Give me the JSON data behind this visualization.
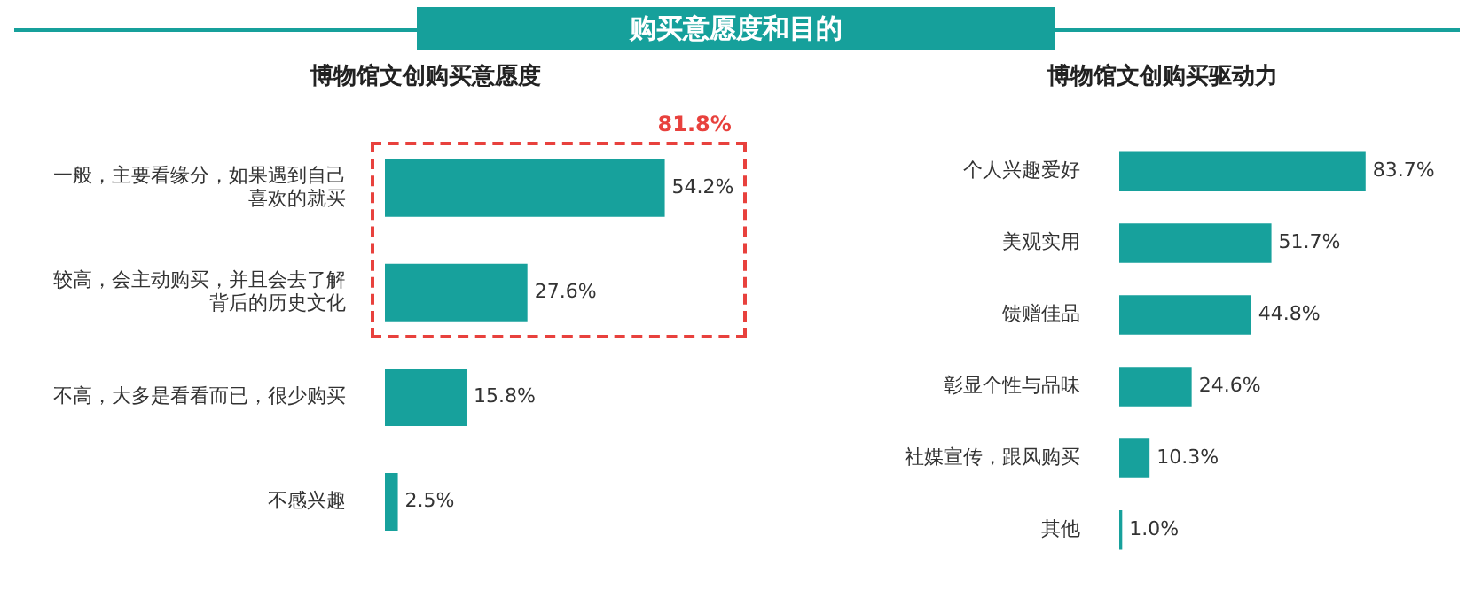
{
  "chart_data": [
    {
      "type": "bar",
      "orientation": "horizontal",
      "title": "购买意愿度和目的",
      "subtitle": "博物馆文创购买意愿度",
      "categories": [
        "一般，主要看缘分，如果遇到自己喜欢的就买",
        "较高，会主动购买，并且会去了解背后的历史文化",
        "不高，大多是看看而已，很少购买",
        "不感兴趣"
      ],
      "values": [
        54.2,
        27.6,
        15.8,
        2.5
      ],
      "value_labels": [
        "54.2%",
        "27.6%",
        "15.8%",
        "2.5%"
      ],
      "color": "#17a19c",
      "tick_labels": "y",
      "annotations": [
        "81.8%"
      ]
    },
    {
      "type": "bar",
      "orientation": "horizontal",
      "title": "博物馆文创购买驱动力",
      "categories": [
        "个人兴趣爱好",
        "美观实用",
        "馈赠佳品",
        "彰显个性与品味",
        "社媒宣传，跟风购买",
        "其他"
      ],
      "values": [
        83.7,
        51.7,
        44.8,
        24.6,
        10.3,
        1.0
      ],
      "value_labels": [
        "83.7%",
        "51.7%",
        "44.8%",
        "24.6%",
        "10.3%",
        "1.0%"
      ],
      "color": "#17a19c",
      "tick_labels": "y"
    }
  ]
}
